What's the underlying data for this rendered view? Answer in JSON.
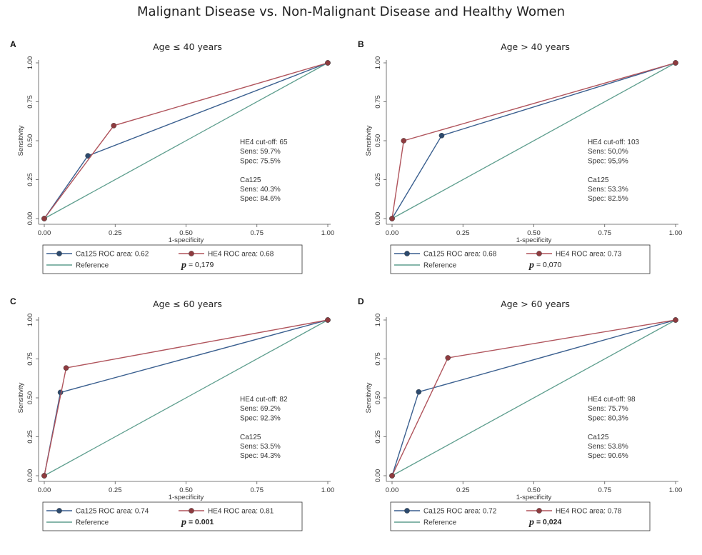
{
  "title": "Malignant Disease vs. Non-Malignant Disease and Healthy Women",
  "colors": {
    "ca125": "#3a5f8f",
    "he4": "#b0545c",
    "reference": "#5e9e8e",
    "marker_ca125": "#2c4a6e",
    "marker_he4": "#8e3b3f"
  },
  "chart_data": [
    {
      "type": "line",
      "panel": "A",
      "title": "Age ≤ 40 years",
      "xlabel": "1-specificity",
      "ylabel": "Sensitivity",
      "xlim": [
        0,
        1
      ],
      "ylim": [
        0,
        1
      ],
      "xticks": [
        "0.00",
        "0.25",
        "0.50",
        "0.75",
        "1.00"
      ],
      "yticks": [
        "0.00",
        "0.25",
        "0.50",
        "0.75",
        "1.00"
      ],
      "series": [
        {
          "name": "Ca125 ROC area: 0.62",
          "key": "ca125",
          "x": [
            0,
            0.154,
            1
          ],
          "y": [
            0,
            0.403,
            1
          ]
        },
        {
          "name": "HE4 ROC area: 0.68",
          "key": "he4",
          "x": [
            0,
            0.245,
            1
          ],
          "y": [
            0,
            0.597,
            1
          ]
        },
        {
          "name": "Reference",
          "key": "reference",
          "x": [
            0,
            1
          ],
          "y": [
            0,
            1
          ]
        }
      ],
      "annotations": [
        "HE4 cut-off: 65",
        "Sens: 59.7%",
        "Spec: 75.5%",
        "",
        "Ca125",
        "Sens: 40.3%",
        "Spec: 84.6%"
      ],
      "p_label": "= 0,179",
      "p_bold": false
    },
    {
      "type": "line",
      "panel": "B",
      "title": "Age > 40 years",
      "xlabel": "1-specificity",
      "ylabel": "Sensitivity",
      "xlim": [
        0,
        1
      ],
      "ylim": [
        0,
        1
      ],
      "xticks": [
        "0.00",
        "0.25",
        "0.50",
        "0.75",
        "1.00"
      ],
      "yticks": [
        "0.00",
        "0.25",
        "0.50",
        "0.75",
        "1.00"
      ],
      "series": [
        {
          "name": "Ca125 ROC area: 0.68",
          "key": "ca125",
          "x": [
            0,
            0.175,
            1
          ],
          "y": [
            0,
            0.533,
            1
          ]
        },
        {
          "name": "HE4 ROC area: 0.73",
          "key": "he4",
          "x": [
            0,
            0.041,
            1
          ],
          "y": [
            0,
            0.5,
            1
          ]
        },
        {
          "name": "Reference",
          "key": "reference",
          "x": [
            0,
            1
          ],
          "y": [
            0,
            1
          ]
        }
      ],
      "annotations": [
        "HE4 cut-off: 103",
        "Sens: 50,0%",
        "Spec: 95,9%",
        "",
        "Ca125",
        "Sens: 53.3%",
        "Spec: 82.5%"
      ],
      "p_label": "= 0,070",
      "p_bold": false
    },
    {
      "type": "line",
      "panel": "C",
      "title": "Age ≤ 60 years",
      "xlabel": "1-specificity",
      "ylabel": "Sensitivity",
      "xlim": [
        0,
        1
      ],
      "ylim": [
        0,
        1
      ],
      "xticks": [
        "0.00",
        "0.25",
        "0.50",
        "0.75",
        "1.00"
      ],
      "yticks": [
        "0.00",
        "0.25",
        "0.50",
        "0.75",
        "1.00"
      ],
      "series": [
        {
          "name": "Ca125 ROC area: 0.74",
          "key": "ca125",
          "x": [
            0,
            0.057,
            1
          ],
          "y": [
            0,
            0.535,
            1
          ]
        },
        {
          "name": "HE4 ROC area: 0.81",
          "key": "he4",
          "x": [
            0,
            0.077,
            1
          ],
          "y": [
            0,
            0.692,
            1
          ]
        },
        {
          "name": "Reference",
          "key": "reference",
          "x": [
            0,
            1
          ],
          "y": [
            0,
            1
          ]
        }
      ],
      "annotations": [
        "HE4 cut-off: 82",
        "Sens: 69.2%",
        "Spec: 92.3%",
        "",
        "Ca125",
        "Sens: 53.5%",
        "Spec: 94.3%"
      ],
      "p_label": "= 0.001",
      "p_bold": true
    },
    {
      "type": "line",
      "panel": "D",
      "title": "Age > 60 years",
      "xlabel": "1-specificity",
      "ylabel": "Sensitivity",
      "xlim": [
        0,
        1
      ],
      "ylim": [
        0,
        1
      ],
      "xticks": [
        "0.00",
        "0.25",
        "0.50",
        "0.75",
        "1.00"
      ],
      "yticks": [
        "0.00",
        "0.25",
        "0.50",
        "0.75",
        "1.00"
      ],
      "series": [
        {
          "name": "Ca125 ROC area: 0.72",
          "key": "ca125",
          "x": [
            0,
            0.094,
            1
          ],
          "y": [
            0,
            0.538,
            1
          ]
        },
        {
          "name": "HE4 ROC area: 0.78",
          "key": "he4",
          "x": [
            0,
            0.197,
            1
          ],
          "y": [
            0,
            0.757,
            1
          ]
        },
        {
          "name": "Reference",
          "key": "reference",
          "x": [
            0,
            1
          ],
          "y": [
            0,
            1
          ]
        }
      ],
      "annotations": [
        "HE4 cut-off: 98",
        "Sens: 75.7%",
        "Spec: 80,3%",
        "",
        "Ca125",
        "Sens: 53.8%",
        "Spec: 90.6%"
      ],
      "p_label": "= 0,024",
      "p_bold": true
    }
  ]
}
